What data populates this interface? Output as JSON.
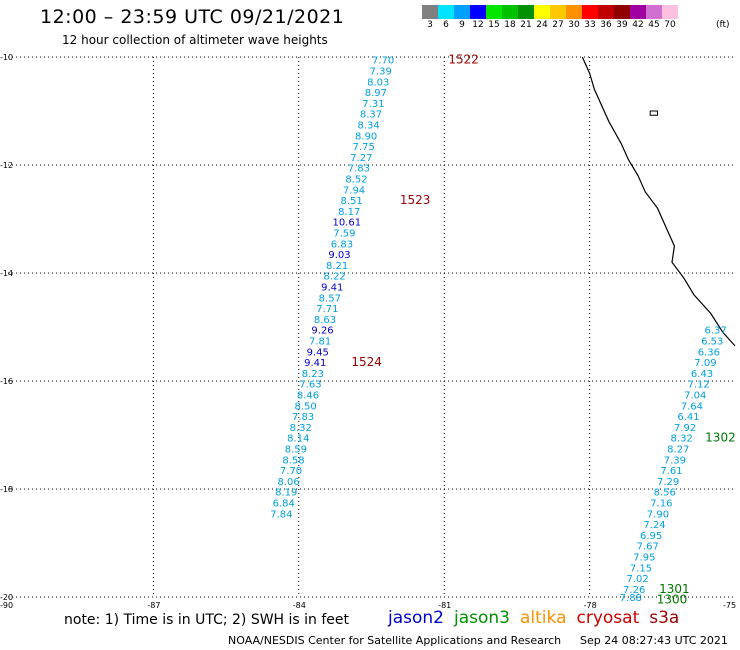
{
  "header": {
    "title": "12:00 – 23:59 UTC 09/21/2021",
    "subtitle": "12 hour collection of altimeter wave heights"
  },
  "colorbar": {
    "unit": "(ft)",
    "steps": [
      {
        "color": "#808080",
        "label": "3"
      },
      {
        "color": "#00e5ff",
        "label": "6"
      },
      {
        "color": "#00a0ff",
        "label": "9"
      },
      {
        "color": "#0000ff",
        "label": "12"
      },
      {
        "color": "#00e600",
        "label": "15"
      },
      {
        "color": "#00c000",
        "label": "18"
      },
      {
        "color": "#009000",
        "label": "21"
      },
      {
        "color": "#ffff00",
        "label": "24"
      },
      {
        "color": "#ffc800",
        "label": "27"
      },
      {
        "color": "#ff9000",
        "label": "30"
      },
      {
        "color": "#ff0000",
        "label": "33"
      },
      {
        "color": "#c00000",
        "label": "36"
      },
      {
        "color": "#900000",
        "label": "39"
      },
      {
        "color": "#a000a0",
        "label": "42"
      },
      {
        "color": "#d070d0",
        "label": "45"
      },
      {
        "color": "#ffc0e0",
        "label": "70"
      }
    ]
  },
  "map": {
    "lon_range": [
      -90,
      -75
    ],
    "lat_range": [
      -20,
      -10
    ],
    "lon_ticks": [
      "-90",
      "-87",
      "-84",
      "-81",
      "-78",
      "-75"
    ],
    "lat_ticks": [
      "-10",
      "-12",
      "-14",
      "-16",
      "-18",
      "-20"
    ],
    "grid_lons": [
      -87,
      -84,
      -81,
      -78
    ],
    "grid_lats": [
      -12,
      -14,
      -16,
      -18
    ],
    "track_a": {
      "color_light": "#00a0e0",
      "color_dark": "#0000cc",
      "values": [
        {
          "v": "7.70",
          "lon": -82.26,
          "lat": -10.05,
          "dark": false
        },
        {
          "v": "7.39",
          "lon": -82.31,
          "lat": -10.25,
          "dark": false
        },
        {
          "v": "8.03",
          "lon": -82.36,
          "lat": -10.45,
          "dark": false
        },
        {
          "v": "8.97",
          "lon": -82.41,
          "lat": -10.65,
          "dark": false
        },
        {
          "v": "7.31",
          "lon": -82.46,
          "lat": -10.85,
          "dark": false
        },
        {
          "v": "8.37",
          "lon": -82.51,
          "lat": -11.05,
          "dark": false
        },
        {
          "v": "8.34",
          "lon": -82.56,
          "lat": -11.25,
          "dark": false
        },
        {
          "v": "8.90",
          "lon": -82.61,
          "lat": -11.45,
          "dark": false
        },
        {
          "v": "7.75",
          "lon": -82.66,
          "lat": -11.65,
          "dark": false
        },
        {
          "v": "7.27",
          "lon": -82.71,
          "lat": -11.85,
          "dark": false
        },
        {
          "v": "7.83",
          "lon": -82.76,
          "lat": -12.05,
          "dark": false
        },
        {
          "v": "8.52",
          "lon": -82.81,
          "lat": -12.25,
          "dark": false
        },
        {
          "v": "7.94",
          "lon": -82.86,
          "lat": -12.45,
          "dark": false
        },
        {
          "v": "8.51",
          "lon": -82.91,
          "lat": -12.65,
          "dark": false
        },
        {
          "v": "8.17",
          "lon": -82.96,
          "lat": -12.85,
          "dark": false
        },
        {
          "v": "10.61",
          "lon": -83.01,
          "lat": -13.05,
          "dark": true
        },
        {
          "v": "7.59",
          "lon": -83.06,
          "lat": -13.25,
          "dark": false
        },
        {
          "v": "6.83",
          "lon": -83.11,
          "lat": -13.45,
          "dark": false
        },
        {
          "v": "9.03",
          "lon": -83.16,
          "lat": -13.65,
          "dark": true
        },
        {
          "v": "8.21",
          "lon": -83.21,
          "lat": -13.85,
          "dark": false
        },
        {
          "v": "8.22",
          "lon": -83.26,
          "lat": -14.05,
          "dark": false
        },
        {
          "v": "9.41",
          "lon": -83.31,
          "lat": -14.25,
          "dark": true
        },
        {
          "v": "8.57",
          "lon": -83.36,
          "lat": -14.45,
          "dark": false
        },
        {
          "v": "7.71",
          "lon": -83.41,
          "lat": -14.65,
          "dark": false
        },
        {
          "v": "8.63",
          "lon": -83.46,
          "lat": -14.85,
          "dark": false
        },
        {
          "v": "9.26",
          "lon": -83.51,
          "lat": -15.05,
          "dark": true
        },
        {
          "v": "7.81",
          "lon": -83.56,
          "lat": -15.25,
          "dark": false
        },
        {
          "v": "9.45",
          "lon": -83.61,
          "lat": -15.45,
          "dark": true
        },
        {
          "v": "9.41",
          "lon": -83.66,
          "lat": -15.65,
          "dark": true
        },
        {
          "v": "8.23",
          "lon": -83.71,
          "lat": -15.85,
          "dark": false
        },
        {
          "v": "7.63",
          "lon": -83.76,
          "lat": -16.05,
          "dark": false
        },
        {
          "v": "8.46",
          "lon": -83.81,
          "lat": -16.25,
          "dark": false
        },
        {
          "v": "8.50",
          "lon": -83.86,
          "lat": -16.45,
          "dark": false
        },
        {
          "v": "7.83",
          "lon": -83.91,
          "lat": -16.65,
          "dark": false
        },
        {
          "v": "8.32",
          "lon": -83.96,
          "lat": -16.85,
          "dark": false
        },
        {
          "v": "8.14",
          "lon": -84.01,
          "lat": -17.05,
          "dark": false
        },
        {
          "v": "8.59",
          "lon": -84.06,
          "lat": -17.25,
          "dark": false
        },
        {
          "v": "8.58",
          "lon": -84.11,
          "lat": -17.45,
          "dark": false
        },
        {
          "v": "7.70",
          "lon": -84.16,
          "lat": -17.65,
          "dark": false
        },
        {
          "v": "8.06",
          "lon": -84.21,
          "lat": -17.85,
          "dark": false
        },
        {
          "v": "8.19",
          "lon": -84.26,
          "lat": -18.05,
          "dark": false
        },
        {
          "v": "6.84",
          "lon": -84.31,
          "lat": -18.25,
          "dark": false
        },
        {
          "v": "7.84",
          "lon": -84.36,
          "lat": -18.45,
          "dark": false
        }
      ]
    },
    "track_b": {
      "color": "#00a0e0",
      "values": [
        {
          "v": "6.37",
          "lon": -75.4,
          "lat": -15.05
        },
        {
          "v": "6.53",
          "lon": -75.47,
          "lat": -15.25
        },
        {
          "v": "6.36",
          "lon": -75.54,
          "lat": -15.45
        },
        {
          "v": "7.09",
          "lon": -75.61,
          "lat": -15.65
        },
        {
          "v": "6.43",
          "lon": -75.68,
          "lat": -15.85
        },
        {
          "v": "7.12",
          "lon": -75.75,
          "lat": -16.05
        },
        {
          "v": "7.04",
          "lon": -75.82,
          "lat": -16.25
        },
        {
          "v": "7.64",
          "lon": -75.89,
          "lat": -16.45
        },
        {
          "v": "6.41",
          "lon": -75.96,
          "lat": -16.65
        },
        {
          "v": "7.92",
          "lon": -76.03,
          "lat": -16.85
        },
        {
          "v": "8.32",
          "lon": -76.1,
          "lat": -17.05
        },
        {
          "v": "8.27",
          "lon": -76.17,
          "lat": -17.25
        },
        {
          "v": "7.39",
          "lon": -76.24,
          "lat": -17.45
        },
        {
          "v": "7.61",
          "lon": -76.31,
          "lat": -17.65
        },
        {
          "v": "7.29",
          "lon": -76.38,
          "lat": -17.85
        },
        {
          "v": "8.56",
          "lon": -76.45,
          "lat": -18.05
        },
        {
          "v": "7.16",
          "lon": -76.52,
          "lat": -18.25
        },
        {
          "v": "7.90",
          "lon": -76.59,
          "lat": -18.45
        },
        {
          "v": "7.24",
          "lon": -76.66,
          "lat": -18.65
        },
        {
          "v": "6.95",
          "lon": -76.73,
          "lat": -18.85
        },
        {
          "v": "7.67",
          "lon": -76.8,
          "lat": -19.05
        },
        {
          "v": "7.95",
          "lon": -76.87,
          "lat": -19.25
        },
        {
          "v": "7.15",
          "lon": -76.94,
          "lat": -19.45
        },
        {
          "v": "7.02",
          "lon": -77.01,
          "lat": -19.65
        },
        {
          "v": "7.26",
          "lon": -77.08,
          "lat": -19.85
        },
        {
          "v": "7.88",
          "lon": -77.15,
          "lat": -20.0
        }
      ]
    },
    "pass_labels": [
      {
        "text": "1522",
        "lon": -80.6,
        "lat": -10.05,
        "color": "#990000"
      },
      {
        "text": "1523",
        "lon": -81.6,
        "lat": -12.65,
        "color": "#990000"
      },
      {
        "text": "1524",
        "lon": -82.6,
        "lat": -15.65,
        "color": "#990000"
      },
      {
        "text": "1302",
        "lon": -75.3,
        "lat": -17.05,
        "color": "#007700"
      },
      {
        "text": "1301",
        "lon": -76.25,
        "lat": -19.85,
        "color": "#007700"
      },
      {
        "text": "1300",
        "lon": -76.3,
        "lat": -20.05,
        "color": "#007700"
      }
    ],
    "coastline": [
      [
        -78.15,
        -10.0
      ],
      [
        -78.0,
        -10.3
      ],
      [
        -77.9,
        -10.6
      ],
      [
        -77.75,
        -10.9
      ],
      [
        -77.6,
        -11.2
      ],
      [
        -77.35,
        -11.6
      ],
      [
        -77.2,
        -11.9
      ],
      [
        -77.0,
        -12.2
      ],
      [
        -76.85,
        -12.5
      ],
      [
        -76.6,
        -12.8
      ],
      [
        -76.4,
        -13.2
      ],
      [
        -76.25,
        -13.5
      ],
      [
        -76.3,
        -13.8
      ],
      [
        -76.05,
        -14.1
      ],
      [
        -75.85,
        -14.4
      ],
      [
        -75.5,
        -14.75
      ],
      [
        -75.25,
        -15.1
      ],
      [
        -75.0,
        -15.35
      ]
    ],
    "island": [
      [
        -76.75,
        -11.0
      ],
      [
        -76.6,
        -11.0
      ],
      [
        -76.6,
        -11.08
      ],
      [
        -76.75,
        -11.08
      ]
    ]
  },
  "note": "note: 1) Time is in UTC; 2) SWH is in feet",
  "legend": [
    {
      "label": "jason2",
      "color": "#0000cc"
    },
    {
      "label": "jason3",
      "color": "#009000"
    },
    {
      "label": "altika",
      "color": "#ff9000"
    },
    {
      "label": "cryosat",
      "color": "#cc0000"
    },
    {
      "label": "s3a",
      "color": "#990000"
    }
  ],
  "footer": {
    "credit": "NOAA/NESDIS Center for Satellite Applications and Research",
    "timestamp": "Sep 24 08:27:43 UTC 2021"
  }
}
